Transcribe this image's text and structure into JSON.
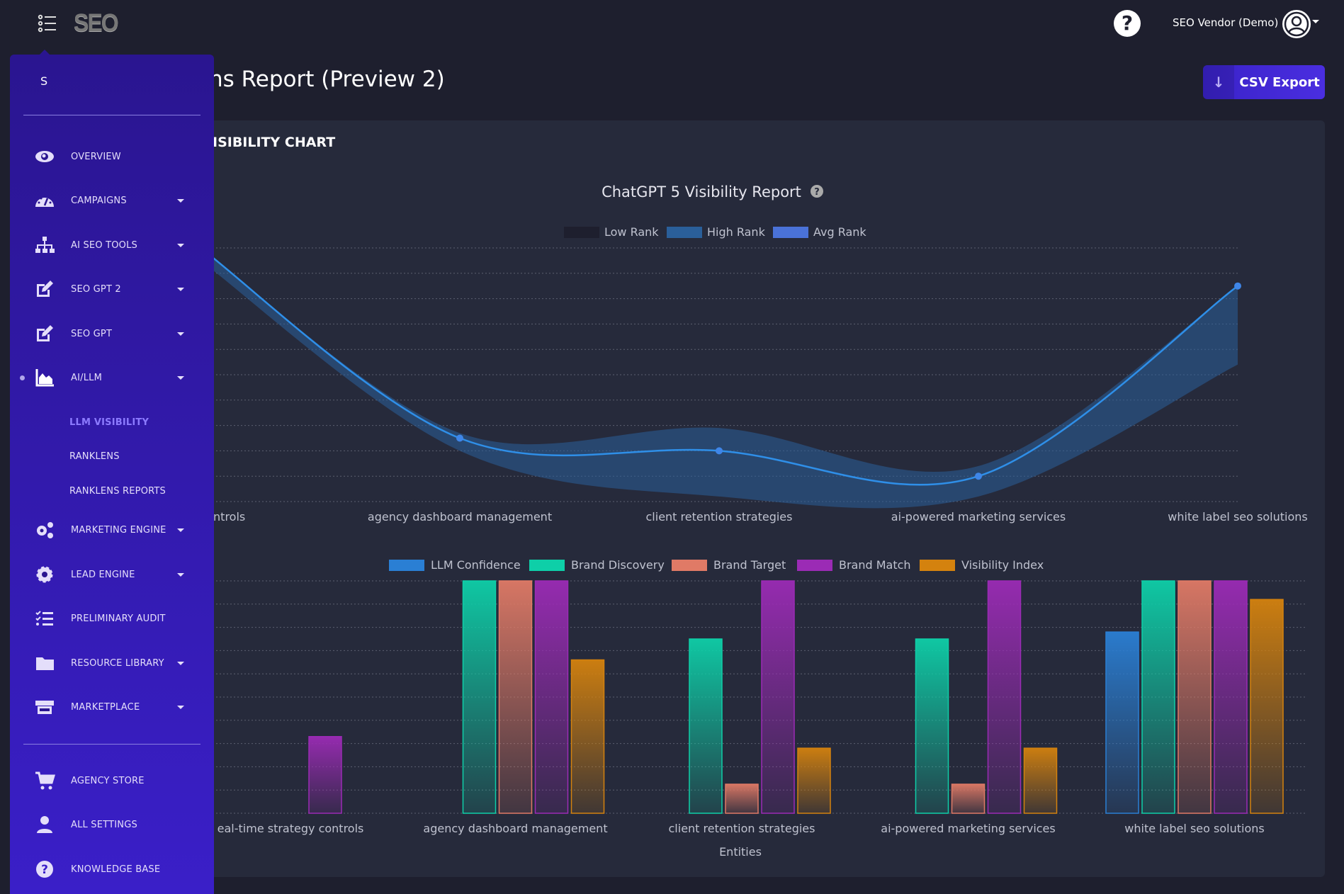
{
  "topbar": {
    "logo_text": "SEO",
    "user_name": "SEO Vendor (Demo)",
    "help_icon": "question-circle-icon",
    "avatar_icon": "user-circle-icon"
  },
  "page": {
    "title": "ns Report (Preview 2)",
    "csv_export_label": "CSV Export",
    "card_title": "ISIBILITY CHART"
  },
  "sidebar": {
    "header": "S",
    "items": [
      {
        "label": "OVERVIEW",
        "icon": "eye-icon",
        "caret": false
      },
      {
        "label": "CAMPAIGNS",
        "icon": "gauge-icon",
        "caret": true
      },
      {
        "label": "AI SEO TOOLS",
        "icon": "sitemap-icon",
        "caret": true
      },
      {
        "label": "SEO GPT 2",
        "icon": "edit-icon",
        "caret": true
      },
      {
        "label": "SEO GPT",
        "icon": "edit-icon",
        "caret": true
      },
      {
        "label": "AI/LLM",
        "icon": "area-chart-icon",
        "caret": true,
        "current": true
      }
    ],
    "subitems": [
      {
        "label": "LLM VISIBILITY",
        "active": true
      },
      {
        "label": "RANKLENS",
        "active": false
      },
      {
        "label": "RANKLENS REPORTS",
        "active": false
      }
    ],
    "items2": [
      {
        "label": "MARKETING ENGINE",
        "icon": "cogs-icon",
        "caret": true
      },
      {
        "label": "LEAD ENGINE",
        "icon": "gear-icon",
        "caret": true
      },
      {
        "label": "PRELIMINARY AUDIT",
        "icon": "checklist-icon",
        "caret": false
      },
      {
        "label": "RESOURCE LIBRARY",
        "icon": "folder-icon",
        "caret": true
      },
      {
        "label": "MARKETPLACE",
        "icon": "store-icon",
        "caret": true
      }
    ],
    "bottom": [
      {
        "label": "AGENCY STORE",
        "icon": "cart-icon"
      },
      {
        "label": "ALL SETTINGS",
        "icon": "user-icon"
      },
      {
        "label": "KNOWLEDGE BASE",
        "icon": "question-circle-icon"
      }
    ]
  },
  "chart_data": [
    {
      "type": "line",
      "title": "ChatGPT 5 Visibility Report",
      "categories": [
        "real-time strategy controls",
        "agency dashboard management",
        "client retention strategies",
        "ai-powered marketing services",
        "white label seo solutions"
      ],
      "category_labels": [
        "gy controls",
        "agency dashboard management",
        "client retention strategies",
        "ai-powered marketing services",
        "white label seo solutions"
      ],
      "series": [
        {
          "name": "Low Rank",
          "values": [
            9.5,
            2.0,
            0.2,
            0.2,
            5.4
          ],
          "color": "#1e1f2e"
        },
        {
          "name": "High Rank",
          "values": [
            10,
            2.7,
            2.9,
            1.4,
            8.5
          ],
          "color": "#2a5f9a"
        },
        {
          "name": "Avg Rank",
          "values": [
            10,
            2.5,
            2.0,
            1.0,
            8.5
          ],
          "color": "#4a72d8"
        }
      ],
      "line_color": "#2f8fe8",
      "ylim": [
        0,
        10
      ],
      "grid": true,
      "legend": "top"
    },
    {
      "type": "bar",
      "xlabel": "Entities",
      "categories": [
        "real-time strategy controls",
        "agency dashboard management",
        "client retention strategies",
        "ai-powered marketing services",
        "white label seo solutions"
      ],
      "category_labels": [
        "eal-time strategy controls",
        "agency dashboard management",
        "client retention strategies",
        "ai-powered marketing services",
        "white label seo solutions"
      ],
      "series": [
        {
          "name": "LLM Confidence",
          "values": [
            0,
            0,
            0,
            0,
            78
          ],
          "color": "#2a7fd4"
        },
        {
          "name": "Brand Discovery",
          "values": [
            0,
            100,
            75,
            75,
            100
          ],
          "color": "#0ecfa8"
        },
        {
          "name": "Brand Target",
          "values": [
            0,
            100,
            12.5,
            12.5,
            100
          ],
          "color": "#e07a66"
        },
        {
          "name": "Brand Match",
          "values": [
            33,
            100,
            100,
            100,
            100
          ],
          "color": "#9b2bb5"
        },
        {
          "name": "Visibility Index",
          "values": [
            0,
            66,
            28,
            28,
            92
          ],
          "color": "#d4820e"
        }
      ],
      "ylim": [
        0,
        100
      ],
      "grid": true,
      "legend": "top"
    }
  ]
}
